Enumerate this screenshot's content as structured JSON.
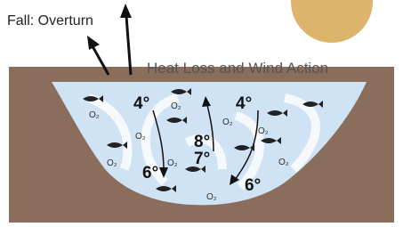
{
  "title": "Fall: Overturn",
  "caption": "Heat Loss and Wind Action",
  "temperatures": [
    "4°",
    "4°",
    "8°",
    "7°",
    "6°",
    "6°"
  ],
  "oxygen_labels": [
    "O₂",
    "O₂",
    "O₂",
    "O₂",
    "O₂",
    "O₂",
    "O₂",
    "O₂",
    "O₂"
  ]
}
